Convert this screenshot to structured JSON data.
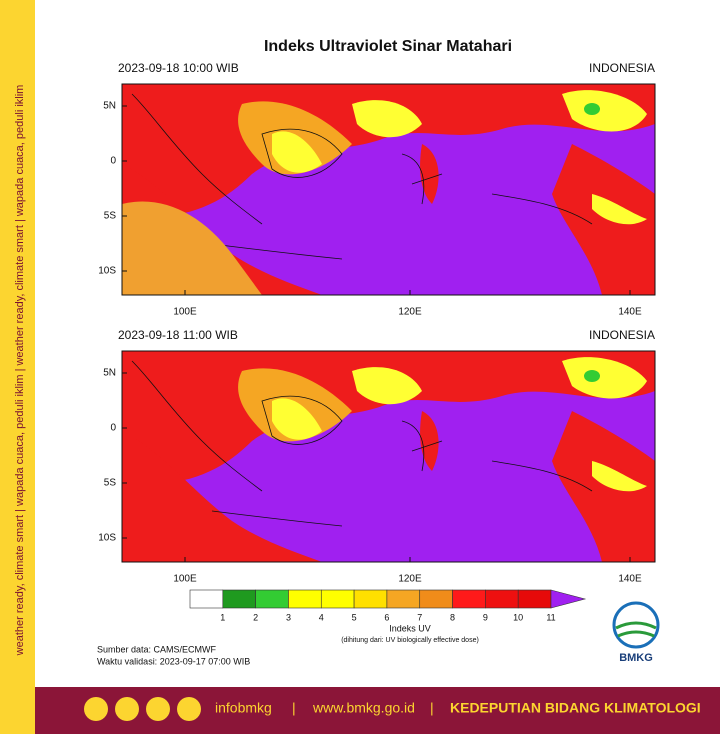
{
  "title": "Indeks Ultraviolet Sinar Matahari",
  "panels": [
    {
      "time": "2023-09-18 10:00 WIB",
      "region": "INDONESIA"
    },
    {
      "time": "2023-09-18 11:00 WIB",
      "region": "INDONESIA"
    }
  ],
  "axes": {
    "lat_labels": [
      "5N",
      "0",
      "5S",
      "10S"
    ],
    "lon_labels": [
      "100E",
      "120E",
      "140E"
    ]
  },
  "colorbar": {
    "labels": [
      1,
      2,
      3,
      4,
      5,
      6,
      7,
      8,
      9,
      10,
      11
    ],
    "colors": [
      "#ffffff",
      "#1f9a1f",
      "#33cc33",
      "#ffff00",
      "#ffff00",
      "#ffe000",
      "#f5a623",
      "#f08c1a",
      "#ff1a1a",
      "#ee1010",
      "#e60a0a",
      "#a020f0"
    ],
    "title": "Indeks UV",
    "note": "(dihitung dari: UV biologically effective dose)"
  },
  "source": "Sumber data: CAMS/ECMWF",
  "validity": "Waktu validasi: 2023-09-17 07:00 WIB",
  "logo": "BMKG",
  "side_text": "weather ready, climate smart | wapada cuaca, peduli iklim | weather ready, climate smart | wapada cuaca, peduli iklim",
  "footer": {
    "handle": "infobmkg",
    "separator": "|",
    "website": "www.bmkg.go.id",
    "department": "KEDEPUTIAN BIDANG KLIMATOLOGI"
  }
}
